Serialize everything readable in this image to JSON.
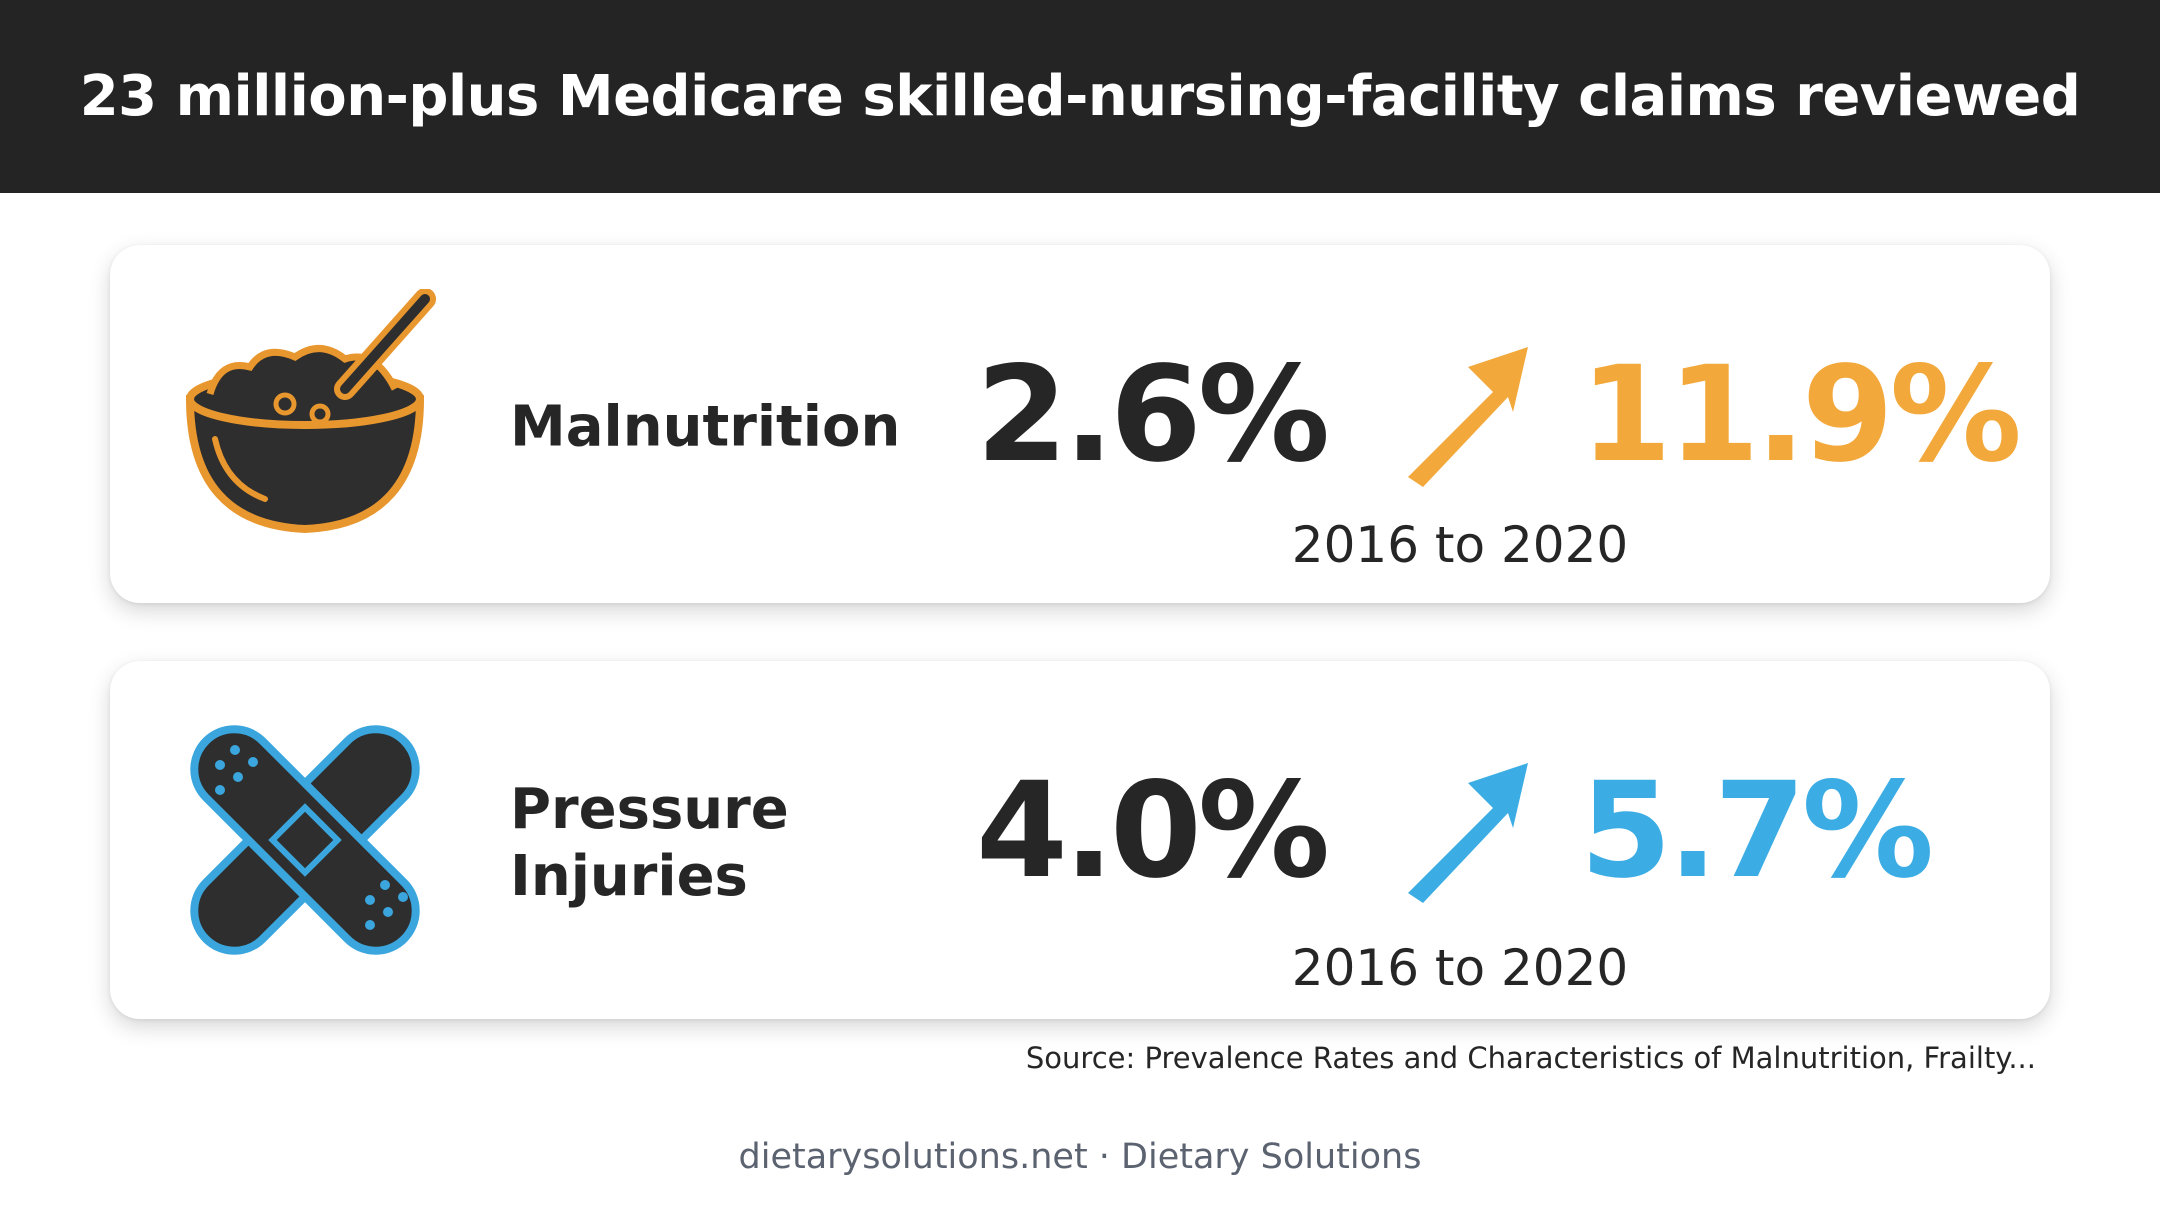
{
  "header": {
    "title": "23 million-plus Medicare skilled-nursing-facility claims reviewed"
  },
  "cards": [
    {
      "label": "Malnutrition",
      "from": "2.6%",
      "to": "11.9%",
      "period": "2016 to 2020",
      "accent": "#f2a83a"
    },
    {
      "label": "Pressure Injuries",
      "from": "4.0%",
      "to": "5.7%",
      "period": "2016 to 2020",
      "accent": "#3badE4"
    }
  ],
  "source": "Source: Prevalence Rates and Characteristics of Malnutrition, Frailty...",
  "footer": "dietarysolutions.net · Dietary Solutions"
}
